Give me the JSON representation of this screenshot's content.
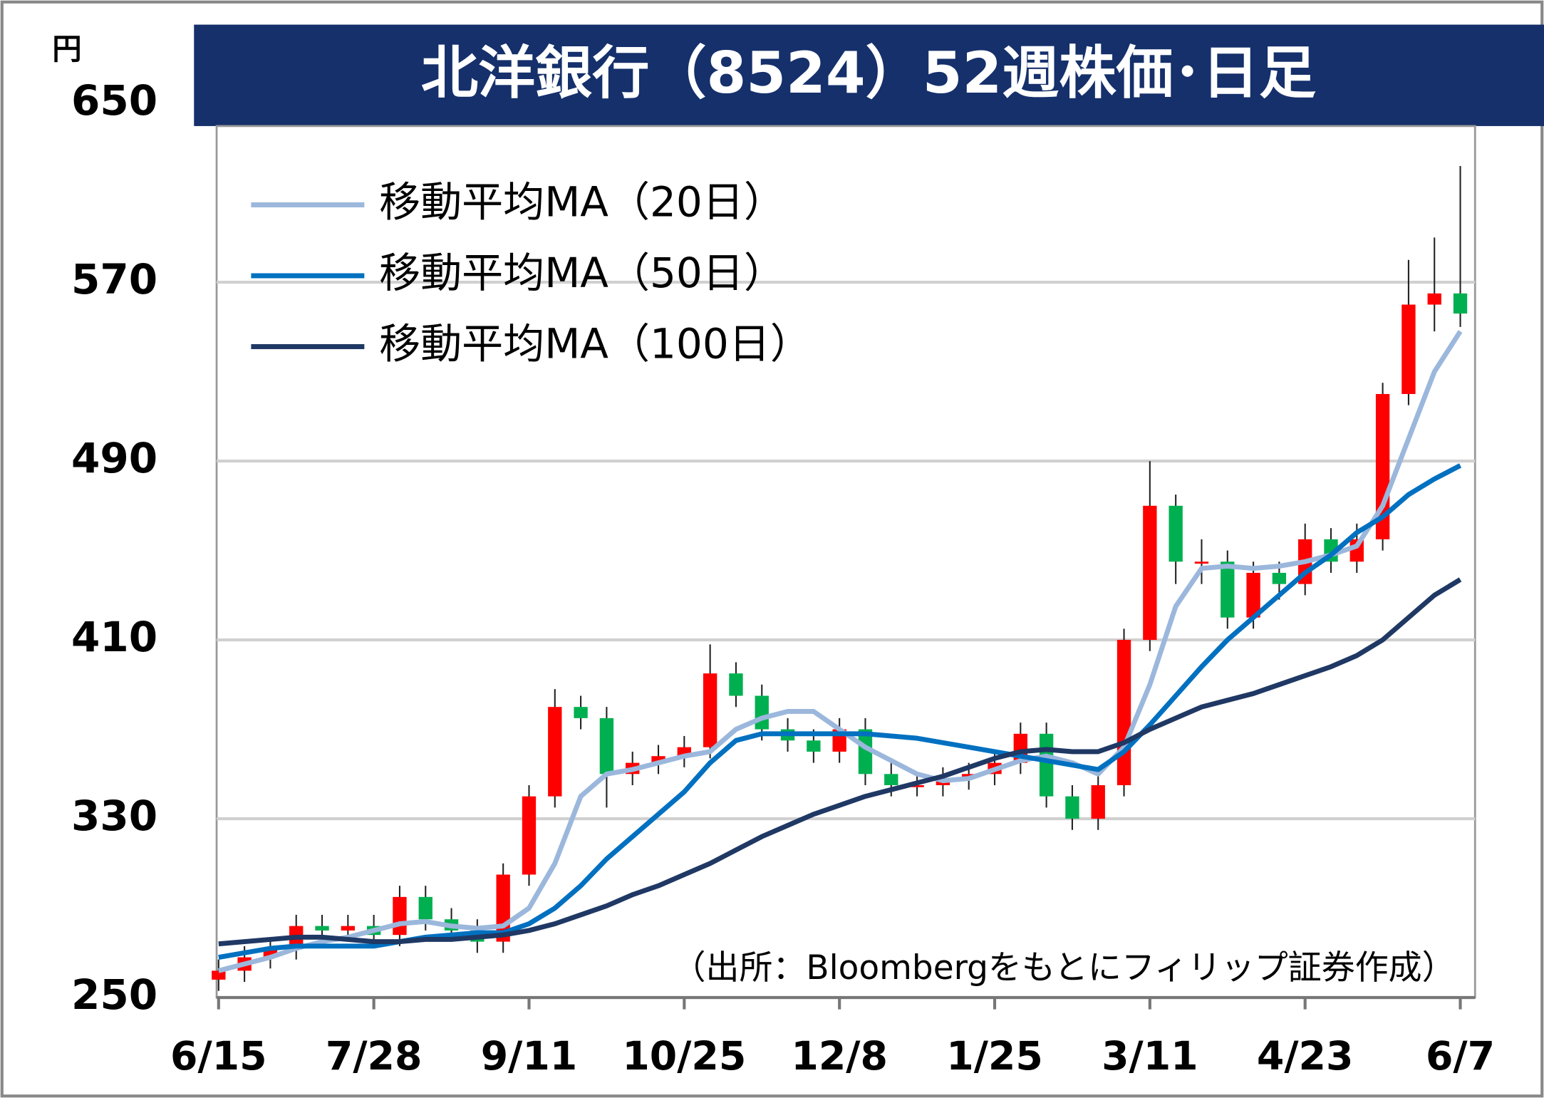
{
  "chart_data": {
    "type": "candlestick",
    "title": "北洋銀行（8524）52週株価･日足",
    "y_unit": "円",
    "annotation": "（出所：Bloombergをもとにフィリップ証券作成）",
    "categories": [
      "6/15",
      null,
      null,
      null,
      null,
      null,
      "7/28",
      null,
      null,
      null,
      null,
      null,
      "9/11",
      null,
      null,
      null,
      null,
      null,
      "10/25",
      null,
      null,
      null,
      null,
      null,
      "12/8",
      null,
      null,
      null,
      null,
      null,
      "1/25",
      null,
      null,
      null,
      null,
      null,
      "3/11",
      null,
      null,
      null,
      null,
      null,
      "4/23",
      null,
      null,
      null,
      null,
      null,
      "6/7"
    ],
    "open": [
      258,
      262,
      268,
      272,
      282,
      280,
      282,
      278,
      295,
      285,
      280,
      275,
      305,
      340,
      380,
      375,
      350,
      355,
      358,
      362,
      395,
      385,
      370,
      365,
      360,
      370,
      350,
      345,
      345,
      348,
      350,
      355,
      368,
      340,
      330,
      345,
      410,
      470,
      445,
      445,
      420,
      440,
      435,
      455,
      445,
      455,
      520,
      560,
      565
    ],
    "high": [
      267,
      273,
      277,
      287,
      287,
      287,
      287,
      300,
      300,
      290,
      285,
      310,
      345,
      388,
      385,
      380,
      360,
      363,
      367,
      408,
      400,
      390,
      375,
      370,
      375,
      375,
      355,
      350,
      353,
      355,
      360,
      373,
      373,
      345,
      350,
      415,
      490,
      475,
      455,
      450,
      445,
      445,
      462,
      460,
      462,
      525,
      580,
      590,
      622
    ],
    "low": [
      253,
      257,
      263,
      267,
      275,
      275,
      273,
      273,
      280,
      275,
      270,
      270,
      300,
      335,
      370,
      335,
      345,
      350,
      353,
      357,
      380,
      365,
      360,
      355,
      355,
      345,
      340,
      340,
      340,
      343,
      345,
      350,
      335,
      325,
      325,
      340,
      405,
      435,
      435,
      415,
      415,
      428,
      430,
      440,
      440,
      450,
      515,
      548,
      550
    ],
    "close": [
      262,
      268,
      272,
      282,
      280,
      282,
      278,
      295,
      285,
      280,
      275,
      305,
      340,
      380,
      375,
      350,
      355,
      358,
      362,
      395,
      385,
      370,
      365,
      360,
      370,
      350,
      345,
      345,
      348,
      350,
      355,
      368,
      340,
      330,
      345,
      410,
      470,
      445,
      445,
      420,
      440,
      435,
      455,
      445,
      455,
      520,
      560,
      565,
      556
    ],
    "up_color": "#ff0000",
    "down_color": "#00b050",
    "series": [
      {
        "name": "移動平均MA（20日）",
        "color": "#9bb7dc",
        "values": [
          262,
          265,
          268,
          272,
          275,
          277,
          280,
          283,
          284,
          282,
          281,
          282,
          290,
          310,
          340,
          350,
          352,
          355,
          358,
          360,
          370,
          375,
          378,
          378,
          370,
          362,
          356,
          350,
          347,
          348,
          352,
          356,
          358,
          355,
          350,
          362,
          390,
          425,
          442,
          443,
          442,
          443,
          445,
          448,
          452,
          470,
          500,
          530,
          548
        ]
      },
      {
        "name": "移動平均MA（50日）",
        "color": "#0070c0",
        "values": [
          268,
          270,
          272,
          273,
          273,
          273,
          273,
          275,
          277,
          278,
          279,
          279,
          283,
          290,
          300,
          312,
          322,
          332,
          342,
          355,
          365,
          368,
          368,
          368,
          368,
          368,
          367,
          366,
          364,
          362,
          360,
          358,
          356,
          354,
          352,
          360,
          372,
          385,
          398,
          410,
          420,
          430,
          440,
          448,
          458,
          465,
          475,
          482,
          488
        ]
      },
      {
        "name": "移動平均MA（100日）",
        "color": "#1f3864",
        "values": [
          274,
          275,
          276,
          277,
          277,
          276,
          275,
          275,
          276,
          276,
          277,
          278,
          280,
          283,
          287,
          291,
          296,
          300,
          305,
          310,
          316,
          322,
          327,
          332,
          336,
          340,
          343,
          346,
          349,
          353,
          357,
          360,
          361,
          360,
          360,
          364,
          370,
          375,
          380,
          383,
          386,
          390,
          394,
          398,
          403,
          410,
          420,
          430,
          437
        ]
      }
    ],
    "ylim": [
      250,
      650
    ],
    "yticks": [
      250,
      330,
      410,
      490,
      570,
      650
    ],
    "grid": true,
    "legend": "top-left"
  }
}
